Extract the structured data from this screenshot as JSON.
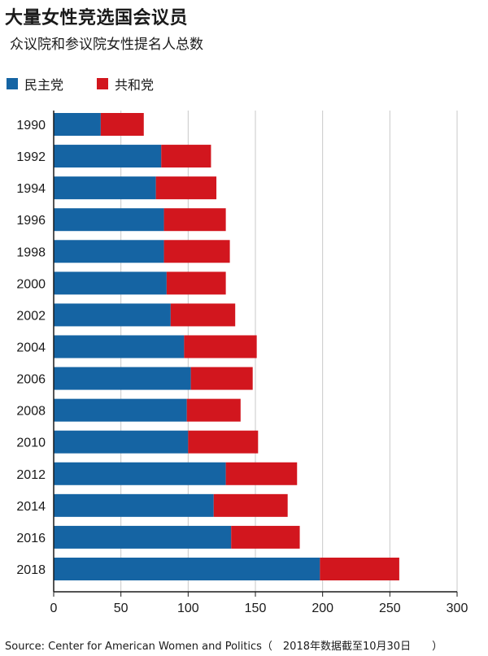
{
  "title": "大量女性竞选国会议员",
  "subtitle": "众议院和参议院女性提名人总数",
  "source": "Source: Center for American Women and Politics（　2018年数据截至10月30日　　）",
  "chart_data": {
    "type": "bar",
    "orientation": "horizontal",
    "stacked": true,
    "categories": [
      "1990",
      "1992",
      "1994",
      "1996",
      "1998",
      "2000",
      "2002",
      "2004",
      "2006",
      "2008",
      "2010",
      "2012",
      "2014",
      "2016",
      "2018"
    ],
    "series": [
      {
        "name": "民主党",
        "color": "#1564a3",
        "values": [
          35,
          80,
          76,
          82,
          82,
          84,
          87,
          97,
          102,
          99,
          100,
          128,
          119,
          132,
          198
        ]
      },
      {
        "name": "共和党",
        "color": "#d2161e",
        "values": [
          32,
          37,
          45,
          46,
          49,
          44,
          48,
          54,
          46,
          40,
          52,
          53,
          55,
          51,
          59
        ]
      }
    ],
    "xlim": [
      0,
      300
    ],
    "xticks": [
      0,
      50,
      100,
      150,
      200,
      250,
      300
    ],
    "grid": "vertical",
    "legend": "top-left"
  }
}
